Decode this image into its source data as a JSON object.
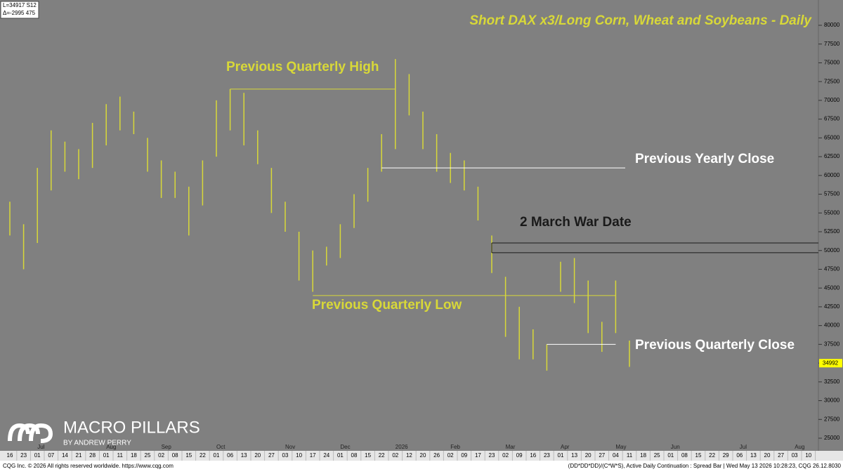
{
  "chart_data": {
    "type": "range",
    "title": "Short DAX x3/Long Corn, Wheat and Soybeans - Daily",
    "info": [
      "L=34917 S12",
      "Δ=-2995 475"
    ],
    "color": "#d8d838",
    "categories": [
      "16",
      "23",
      "01",
      "07",
      "14",
      "21",
      "28",
      "01",
      "11",
      "18",
      "25",
      "02",
      "08",
      "15",
      "22",
      "01",
      "06",
      "13",
      "20",
      "27",
      "03",
      "10",
      "17",
      "24",
      "01",
      "08",
      "15",
      "22",
      "02",
      "12",
      "20",
      "26",
      "02",
      "09",
      "17",
      "23",
      "02",
      "09",
      "16",
      "23",
      "01",
      "13",
      "20",
      "27",
      "04",
      "11",
      "18",
      "25",
      "01",
      "08",
      "15",
      "22",
      "29",
      "06",
      "13",
      "20",
      "27",
      "03",
      "10"
    ],
    "months": [
      {
        "label": "Jul",
        "index": 2
      },
      {
        "label": "Aug",
        "index": 7
      },
      {
        "label": "Sep",
        "index": 11
      },
      {
        "label": "Oct",
        "index": 15
      },
      {
        "label": "Nov",
        "index": 20
      },
      {
        "label": "Dec",
        "index": 24
      },
      {
        "label": "2026",
        "index": 28
      },
      {
        "label": "Feb",
        "index": 32
      },
      {
        "label": "Mar",
        "index": 36
      },
      {
        "label": "Apr",
        "index": 40
      },
      {
        "label": "May",
        "index": 44
      },
      {
        "label": "Jun",
        "index": 48
      },
      {
        "label": "Jul",
        "index": 53
      },
      {
        "label": "Aug",
        "index": 57
      }
    ],
    "highs": [
      56500,
      53500,
      61000,
      66000,
      64500,
      63500,
      67000,
      69500,
      70500,
      68500,
      65000,
      62000,
      60500,
      58500,
      62000,
      70000,
      71500,
      71000,
      66000,
      61000,
      56500,
      52500,
      50000,
      50500,
      53500,
      57500,
      61000,
      65500,
      75500,
      73500,
      68500,
      65500,
      63000,
      62000,
      58500,
      52000,
      46500,
      42500,
      39500,
      37500,
      48500,
      49000,
      46000,
      40500,
      46000,
      38000,
      null,
      null,
      null,
      null,
      null,
      null,
      null,
      null,
      null,
      null,
      null,
      null,
      null
    ],
    "lows": [
      52000,
      47500,
      51000,
      58000,
      60500,
      59500,
      61000,
      64000,
      66000,
      65500,
      60500,
      57000,
      57000,
      52000,
      56000,
      62500,
      66000,
      64000,
      61500,
      55000,
      52500,
      46000,
      44500,
      48000,
      49000,
      53000,
      56500,
      60500,
      63500,
      68000,
      63500,
      60500,
      59000,
      58000,
      54000,
      47000,
      38500,
      35500,
      35500,
      34000,
      44500,
      43000,
      39000,
      36500,
      39000,
      34500,
      null,
      null,
      null,
      null,
      null,
      null,
      null,
      null,
      null,
      null,
      null,
      null,
      null
    ],
    "last_value": 34992,
    "ylim": [
      24000,
      81000
    ],
    "yticks": [
      25000,
      27500,
      30000,
      32500,
      35000,
      37500,
      40000,
      42500,
      45000,
      47500,
      50000,
      52500,
      55000,
      57500,
      60000,
      62500,
      65000,
      67500,
      70000,
      72500,
      75000,
      77500,
      80000
    ],
    "annotations": [
      {
        "label": "Previous Quarterly High",
        "value": 71500,
        "from": 16,
        "to": 28,
        "color": "#d8d838"
      },
      {
        "label": "Previous Yearly Close",
        "value": 61000,
        "from": 27,
        "to": 44,
        "color": "#ffffff"
      },
      {
        "label": "2 March War Date",
        "value": 51000,
        "from": 35,
        "to": 58,
        "color": "#1a1a1a"
      },
      {
        "label": "Previous Quarterly Low",
        "value": 44000,
        "from": 22,
        "to": 44,
        "color": "#d8d838"
      },
      {
        "label": "Previous Quarterly Close",
        "value": 37500,
        "from": 39,
        "to": 44,
        "color": "#ffffff"
      }
    ],
    "war_band_low": 49700,
    "logo": {
      "name": "MACRO PILLARS",
      "byline": "BY ANDREW PERRY"
    },
    "footer_left": "CQG Inc. © 2026 All rights reserved worldwide. https://www.cqg.com",
    "footer_right": "(DD*DD*DD)/(C*W*S), Active Daily Continuation : Spread Bar | Wed May 13 2026 10:28:23, CQG 26.12.8030"
  }
}
